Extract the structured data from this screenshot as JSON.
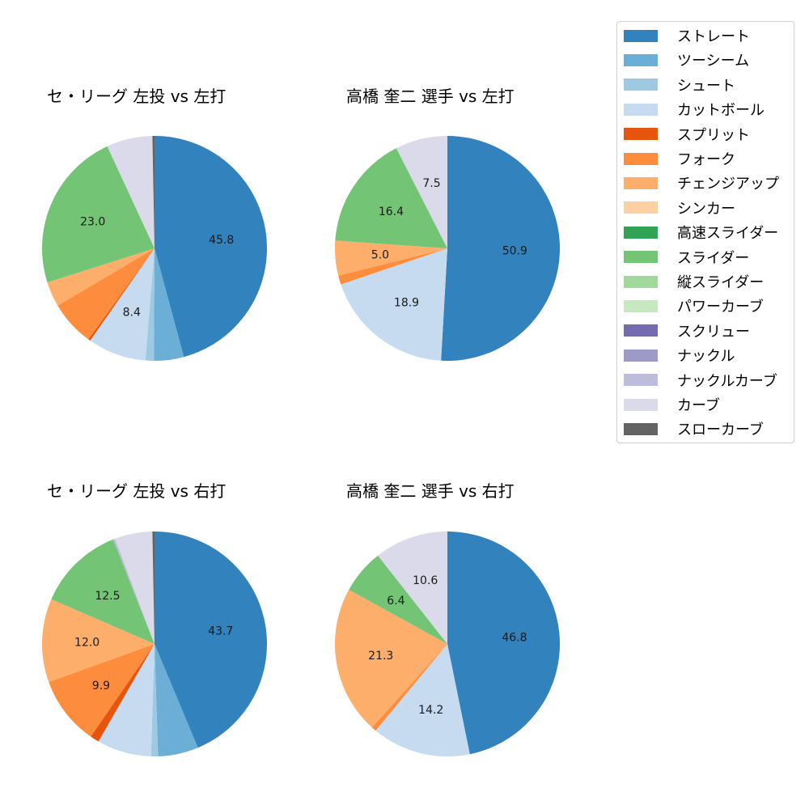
{
  "chart_data": [
    {
      "type": "pie",
      "title": "セ・リーグ 左投 vs 左打",
      "categories": [
        "ストレート",
        "ツーシーム",
        "シュート",
        "カットボール",
        "スプリット",
        "フォーク",
        "チェンジアップ",
        "スライダー",
        "カーブ",
        "スローカーブ"
      ],
      "values": [
        45.8,
        4.3,
        1.2,
        8.4,
        0.3,
        6.5,
        3.6,
        23.0,
        6.6,
        0.3
      ],
      "labels_shown": [
        "45.8",
        "",
        "",
        "8.4",
        "",
        "",
        "",
        "23.0",
        "",
        ""
      ]
    },
    {
      "type": "pie",
      "title": "高橋 奎二 選手 vs 左打",
      "categories": [
        "ストレート",
        "カットボール",
        "フォーク",
        "チェンジアップ",
        "スライダー",
        "カーブ"
      ],
      "values": [
        50.9,
        18.9,
        1.3,
        5.0,
        16.4,
        7.5
      ],
      "labels_shown": [
        "50.9",
        "18.9",
        "",
        "5.0",
        "16.4",
        "7.5"
      ]
    },
    {
      "type": "pie",
      "title": "セ・リーグ 左投 vs 右打",
      "categories": [
        "ストレート",
        "ツーシーム",
        "シュート",
        "カットボール",
        "スプリット",
        "フォーク",
        "チェンジアップ",
        "スライダー",
        "ナックルカーブ",
        "カーブ",
        "スローカーブ"
      ],
      "values": [
        43.7,
        5.8,
        1.0,
        7.8,
        1.3,
        9.9,
        12.0,
        12.5,
        0.3,
        5.4,
        0.3
      ],
      "labels_shown": [
        "43.7",
        "",
        "",
        "",
        "",
        "9.9",
        "12.0",
        "12.5",
        "",
        "",
        ""
      ]
    },
    {
      "type": "pie",
      "title": "高橋 奎二 選手 vs 右打",
      "categories": [
        "ストレート",
        "カットボール",
        "フォーク",
        "チェンジアップ",
        "スライダー",
        "カーブ"
      ],
      "values": [
        46.8,
        14.2,
        0.7,
        21.3,
        6.4,
        10.6
      ],
      "labels_shown": [
        "46.8",
        "14.2",
        "",
        "21.3",
        "6.4",
        "10.6"
      ]
    }
  ],
  "legend": {
    "items": [
      {
        "label": "ストレート",
        "color": "#3182bd"
      },
      {
        "label": "ツーシーム",
        "color": "#6baed6"
      },
      {
        "label": "シュート",
        "color": "#9ecae1"
      },
      {
        "label": "カットボール",
        "color": "#c6dbef"
      },
      {
        "label": "スプリット",
        "color": "#e6550d"
      },
      {
        "label": "フォーク",
        "color": "#fd8d3c"
      },
      {
        "label": "チェンジアップ",
        "color": "#fdae6b"
      },
      {
        "label": "シンカー",
        "color": "#fdd0a2"
      },
      {
        "label": "高速スライダー",
        "color": "#31a354"
      },
      {
        "label": "スライダー",
        "color": "#74c476"
      },
      {
        "label": "縦スライダー",
        "color": "#a1d99b"
      },
      {
        "label": "パワーカーブ",
        "color": "#c7e9c0"
      },
      {
        "label": "スクリュー",
        "color": "#756bb1"
      },
      {
        "label": "ナックル",
        "color": "#9e9ac8"
      },
      {
        "label": "ナックルカーブ",
        "color": "#bcbddc"
      },
      {
        "label": "カーブ",
        "color": "#dadaeb"
      },
      {
        "label": "スローカーブ",
        "color": "#636363"
      }
    ]
  }
}
